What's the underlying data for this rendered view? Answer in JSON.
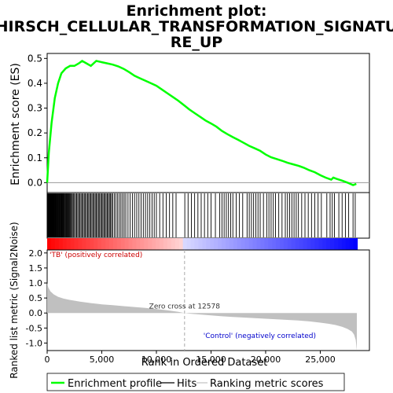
{
  "chart_data": {
    "type": "line",
    "title_lines": [
      "Enrichment plot:",
      "HIRSCH_CELLULAR_TRANSFORMATION_SIGNATU",
      "RE_UP"
    ],
    "top_panel": {
      "ylabel": "Enrichment score (ES)",
      "ylim": [
        -0.04,
        0.52
      ],
      "yticks": [
        0.0,
        0.1,
        0.2,
        0.3,
        0.4,
        0.5
      ],
      "ytick_labels": [
        "0.0",
        "0.1",
        "0.2",
        "0.3",
        "0.4",
        "0.5"
      ],
      "series": [
        {
          "name": "Enrichment profile",
          "color": "#00ff00",
          "x": [
            0,
            150,
            400,
            700,
            1000,
            1300,
            1700,
            2100,
            2500,
            2900,
            3200,
            3600,
            4000,
            4500,
            5000,
            5500,
            6000,
            6500,
            7000,
            7500,
            8000,
            8500,
            9000,
            9500,
            10000,
            10500,
            11000,
            11500,
            12000,
            12578,
            13000,
            13500,
            14000,
            14500,
            15000,
            15500,
            16000,
            16500,
            17000,
            17500,
            18000,
            18500,
            19000,
            19500,
            20000,
            20500,
            21000,
            21500,
            22000,
            22500,
            23000,
            23500,
            24000,
            24500,
            25000,
            25500,
            26000,
            26200,
            26500,
            27000,
            27500,
            28000,
            28300
          ],
          "y": [
            0.0,
            0.12,
            0.24,
            0.34,
            0.4,
            0.44,
            0.46,
            0.47,
            0.47,
            0.48,
            0.49,
            0.48,
            0.47,
            0.49,
            0.485,
            0.48,
            0.475,
            0.468,
            0.458,
            0.445,
            0.43,
            0.42,
            0.41,
            0.4,
            0.39,
            0.375,
            0.36,
            0.345,
            0.33,
            0.31,
            0.295,
            0.28,
            0.265,
            0.25,
            0.238,
            0.225,
            0.208,
            0.195,
            0.183,
            0.172,
            0.16,
            0.148,
            0.138,
            0.128,
            0.113,
            0.102,
            0.095,
            0.088,
            0.08,
            0.074,
            0.068,
            0.06,
            0.05,
            0.042,
            0.03,
            0.02,
            0.012,
            0.02,
            0.015,
            0.008,
            0.0,
            -0.01,
            -0.005
          ]
        }
      ]
    },
    "hits_panel": {
      "legend_label": "Hits",
      "hit_positions": [
        30,
        60,
        90,
        120,
        150,
        180,
        210,
        240,
        270,
        300,
        330,
        360,
        390,
        420,
        450,
        480,
        510,
        540,
        570,
        600,
        640,
        680,
        720,
        760,
        800,
        850,
        900,
        950,
        1000,
        1050,
        1100,
        1150,
        1200,
        1250,
        1300,
        1350,
        1400,
        1450,
        1500,
        1560,
        1620,
        1680,
        1740,
        1800,
        1870,
        1940,
        2010,
        2080,
        2150,
        2230,
        2310,
        2400,
        2500,
        2600,
        2700,
        2800,
        2900,
        3000,
        3100,
        3200,
        3300,
        3400,
        3500,
        3600,
        3700,
        3800,
        3900,
        4000,
        4100,
        4200,
        4300,
        4400,
        4500,
        4600,
        4700,
        4800,
        4900,
        5000,
        5100,
        5200,
        5300,
        5400,
        5500,
        5600,
        5700,
        5800,
        5900,
        6000,
        6150,
        6300,
        6450,
        6600,
        6750,
        6900,
        7050,
        7200,
        7400,
        7600,
        7800,
        8000,
        8200,
        8400,
        8600,
        8800,
        9000,
        9200,
        9400,
        9600,
        9800,
        10000,
        10300,
        10600,
        10900,
        11200,
        11500,
        11800,
        12600,
        12900,
        13200,
        13500,
        13800,
        14100,
        14400,
        14700,
        15000,
        15400,
        15800,
        16000,
        16200,
        16400,
        16600,
        16800,
        17000,
        17300,
        17600,
        17900,
        18300,
        18500,
        18700,
        18900,
        19100,
        19300,
        19500,
        19800,
        20100,
        20300,
        20500,
        20700,
        20900,
        21200,
        21500,
        21800,
        22000,
        22200,
        22400,
        22600,
        22800,
        23000,
        23300,
        23600,
        23900,
        24200,
        24500,
        24800,
        25100,
        25600,
        25900,
        26100,
        26300,
        26700,
        27000,
        27300,
        27600,
        28000,
        28200
      ]
    },
    "metric_panel": {
      "ylabel": "Ranked list metric (Signal2Noise)",
      "ylim": [
        -1.25,
        2.1
      ],
      "yticks": [
        -1.0,
        -0.5,
        0.0,
        0.5,
        1.0,
        1.5,
        2.0
      ],
      "ytick_labels": [
        "-1.0",
        "-0.5",
        "0.0",
        "0.5",
        "1.0",
        "1.5",
        "2.0"
      ],
      "profile_x": [
        0,
        100,
        300,
        600,
        1000,
        1500,
        2000,
        3000,
        4000,
        5000,
        6000,
        7000,
        8000,
        9000,
        10000,
        11000,
        12000,
        12578,
        13000,
        14000,
        15000,
        16000,
        17000,
        18000,
        19000,
        20000,
        21000,
        22000,
        23000,
        24000,
        25000,
        25800,
        26400,
        27000,
        27500,
        27900,
        28100,
        28250,
        28350
      ],
      "profile_y": [
        1.0,
        0.85,
        0.72,
        0.62,
        0.54,
        0.48,
        0.44,
        0.38,
        0.33,
        0.29,
        0.26,
        0.23,
        0.2,
        0.17,
        0.13,
        0.09,
        0.04,
        0.0,
        -0.02,
        -0.05,
        -0.08,
        -0.11,
        -0.13,
        -0.15,
        -0.17,
        -0.19,
        -0.21,
        -0.23,
        -0.25,
        -0.28,
        -0.32,
        -0.36,
        -0.4,
        -0.46,
        -0.53,
        -0.62,
        -0.72,
        -0.9,
        -1.25
      ],
      "zero_cross": 12578,
      "zero_cross_label": "Zero cross at 12578",
      "pos_label": "'TB' (positively correlated)",
      "neg_label": "'Control' (negatively correlated)",
      "legend_label": "Ranking metric scores"
    },
    "xaxis": {
      "xlabel": "Rank in Ordered Dataset",
      "xlim": [
        0,
        29500
      ],
      "xticks": [
        0,
        5000,
        10000,
        15000,
        20000,
        25000
      ],
      "xtick_labels": [
        "0",
        "5,000",
        "10,000",
        "15,000",
        "20,000",
        "25,000"
      ],
      "n_genes": 28400
    },
    "legend": {
      "placement": "bottom",
      "items": [
        "Enrichment profile",
        "Hits",
        "Ranking metric scores"
      ]
    },
    "colors": {
      "es_line": "#00ff00",
      "hits": "#000000",
      "metric_fill": "#c0c0c0",
      "pos_text": "#cc0000",
      "neg_text": "#0000cc",
      "heat_pos": "#ff0000",
      "heat_neg": "#0000ff"
    }
  }
}
